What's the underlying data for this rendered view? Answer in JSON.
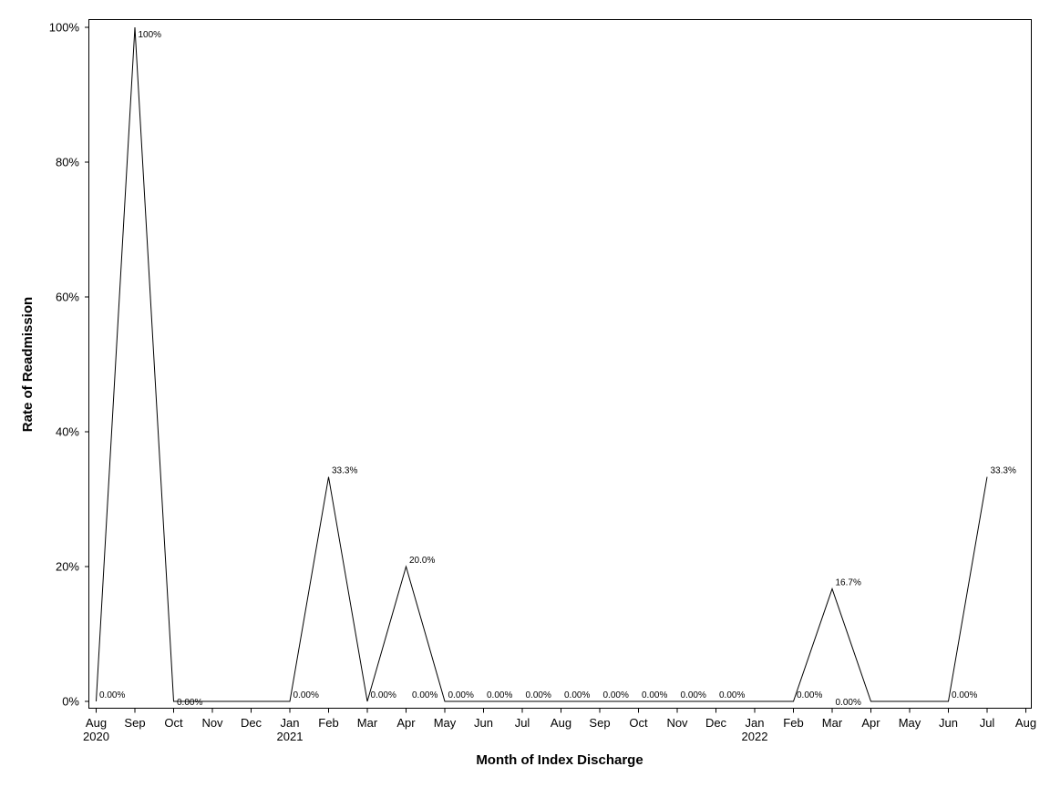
{
  "chart_data": {
    "type": "line",
    "xlabel": "Month of Index Discharge",
    "ylabel": "Rate of Readmission",
    "ylim": [
      0,
      100
    ],
    "y_ticks": [
      {
        "value": 0,
        "label": "0%"
      },
      {
        "value": 20,
        "label": "20%"
      },
      {
        "value": 40,
        "label": "40%"
      },
      {
        "value": 60,
        "label": "60%"
      },
      {
        "value": 80,
        "label": "80%"
      },
      {
        "value": 100,
        "label": "100%"
      }
    ],
    "x_ticks": [
      "Aug",
      "Sep",
      "Oct",
      "Nov",
      "Dec",
      "Jan",
      "Feb",
      "Mar",
      "Apr",
      "May",
      "Jun",
      "Jul",
      "Aug",
      "Sep",
      "Oct",
      "Nov",
      "Dec",
      "Jan",
      "Feb",
      "Mar",
      "Apr",
      "May",
      "Jun",
      "Jul",
      "Aug"
    ],
    "x_years": [
      {
        "index": 0,
        "label": "2020"
      },
      {
        "index": 5,
        "label": "2021"
      },
      {
        "index": 17,
        "label": "2022"
      }
    ],
    "grid": false,
    "legend": "none",
    "x": [
      "2020-08",
      "2020-09",
      "2020-10",
      "2021-01",
      "2021-02",
      "2021-03",
      "2021-04",
      "2021-05",
      "2021-06",
      "2021-07",
      "2021-08",
      "2021-09",
      "2021-10",
      "2021-11",
      "2021-12",
      "2022-02",
      "2022-03",
      "2022-04",
      "2022-06",
      "2022-07"
    ],
    "series": [
      {
        "values": [
          0,
          100,
          0,
          0,
          33.3,
          0,
          20,
          0,
          0,
          0,
          0,
          0,
          0,
          0,
          0,
          0,
          16.7,
          0,
          0,
          33.3
        ],
        "labels": [
          "0.00%",
          "100%",
          "0.00%",
          "0.00%",
          "33.3%",
          "0.00%",
          "20.0%",
          "0.00%",
          "0.00%",
          "0.00%",
          "0.00%",
          "0.00%",
          "0.00%",
          "0.00%",
          "0.00%",
          "0.00%",
          "16.7%",
          "0.00%",
          "0.00%",
          "33.3%"
        ],
        "points": [
          0,
          1,
          2,
          5,
          6,
          7,
          8,
          9,
          10,
          11,
          12,
          13,
          14,
          15,
          16,
          18,
          19,
          20,
          22,
          23
        ]
      }
    ],
    "extra_labels": [
      {
        "index": 8,
        "label": "0.00%"
      }
    ]
  }
}
